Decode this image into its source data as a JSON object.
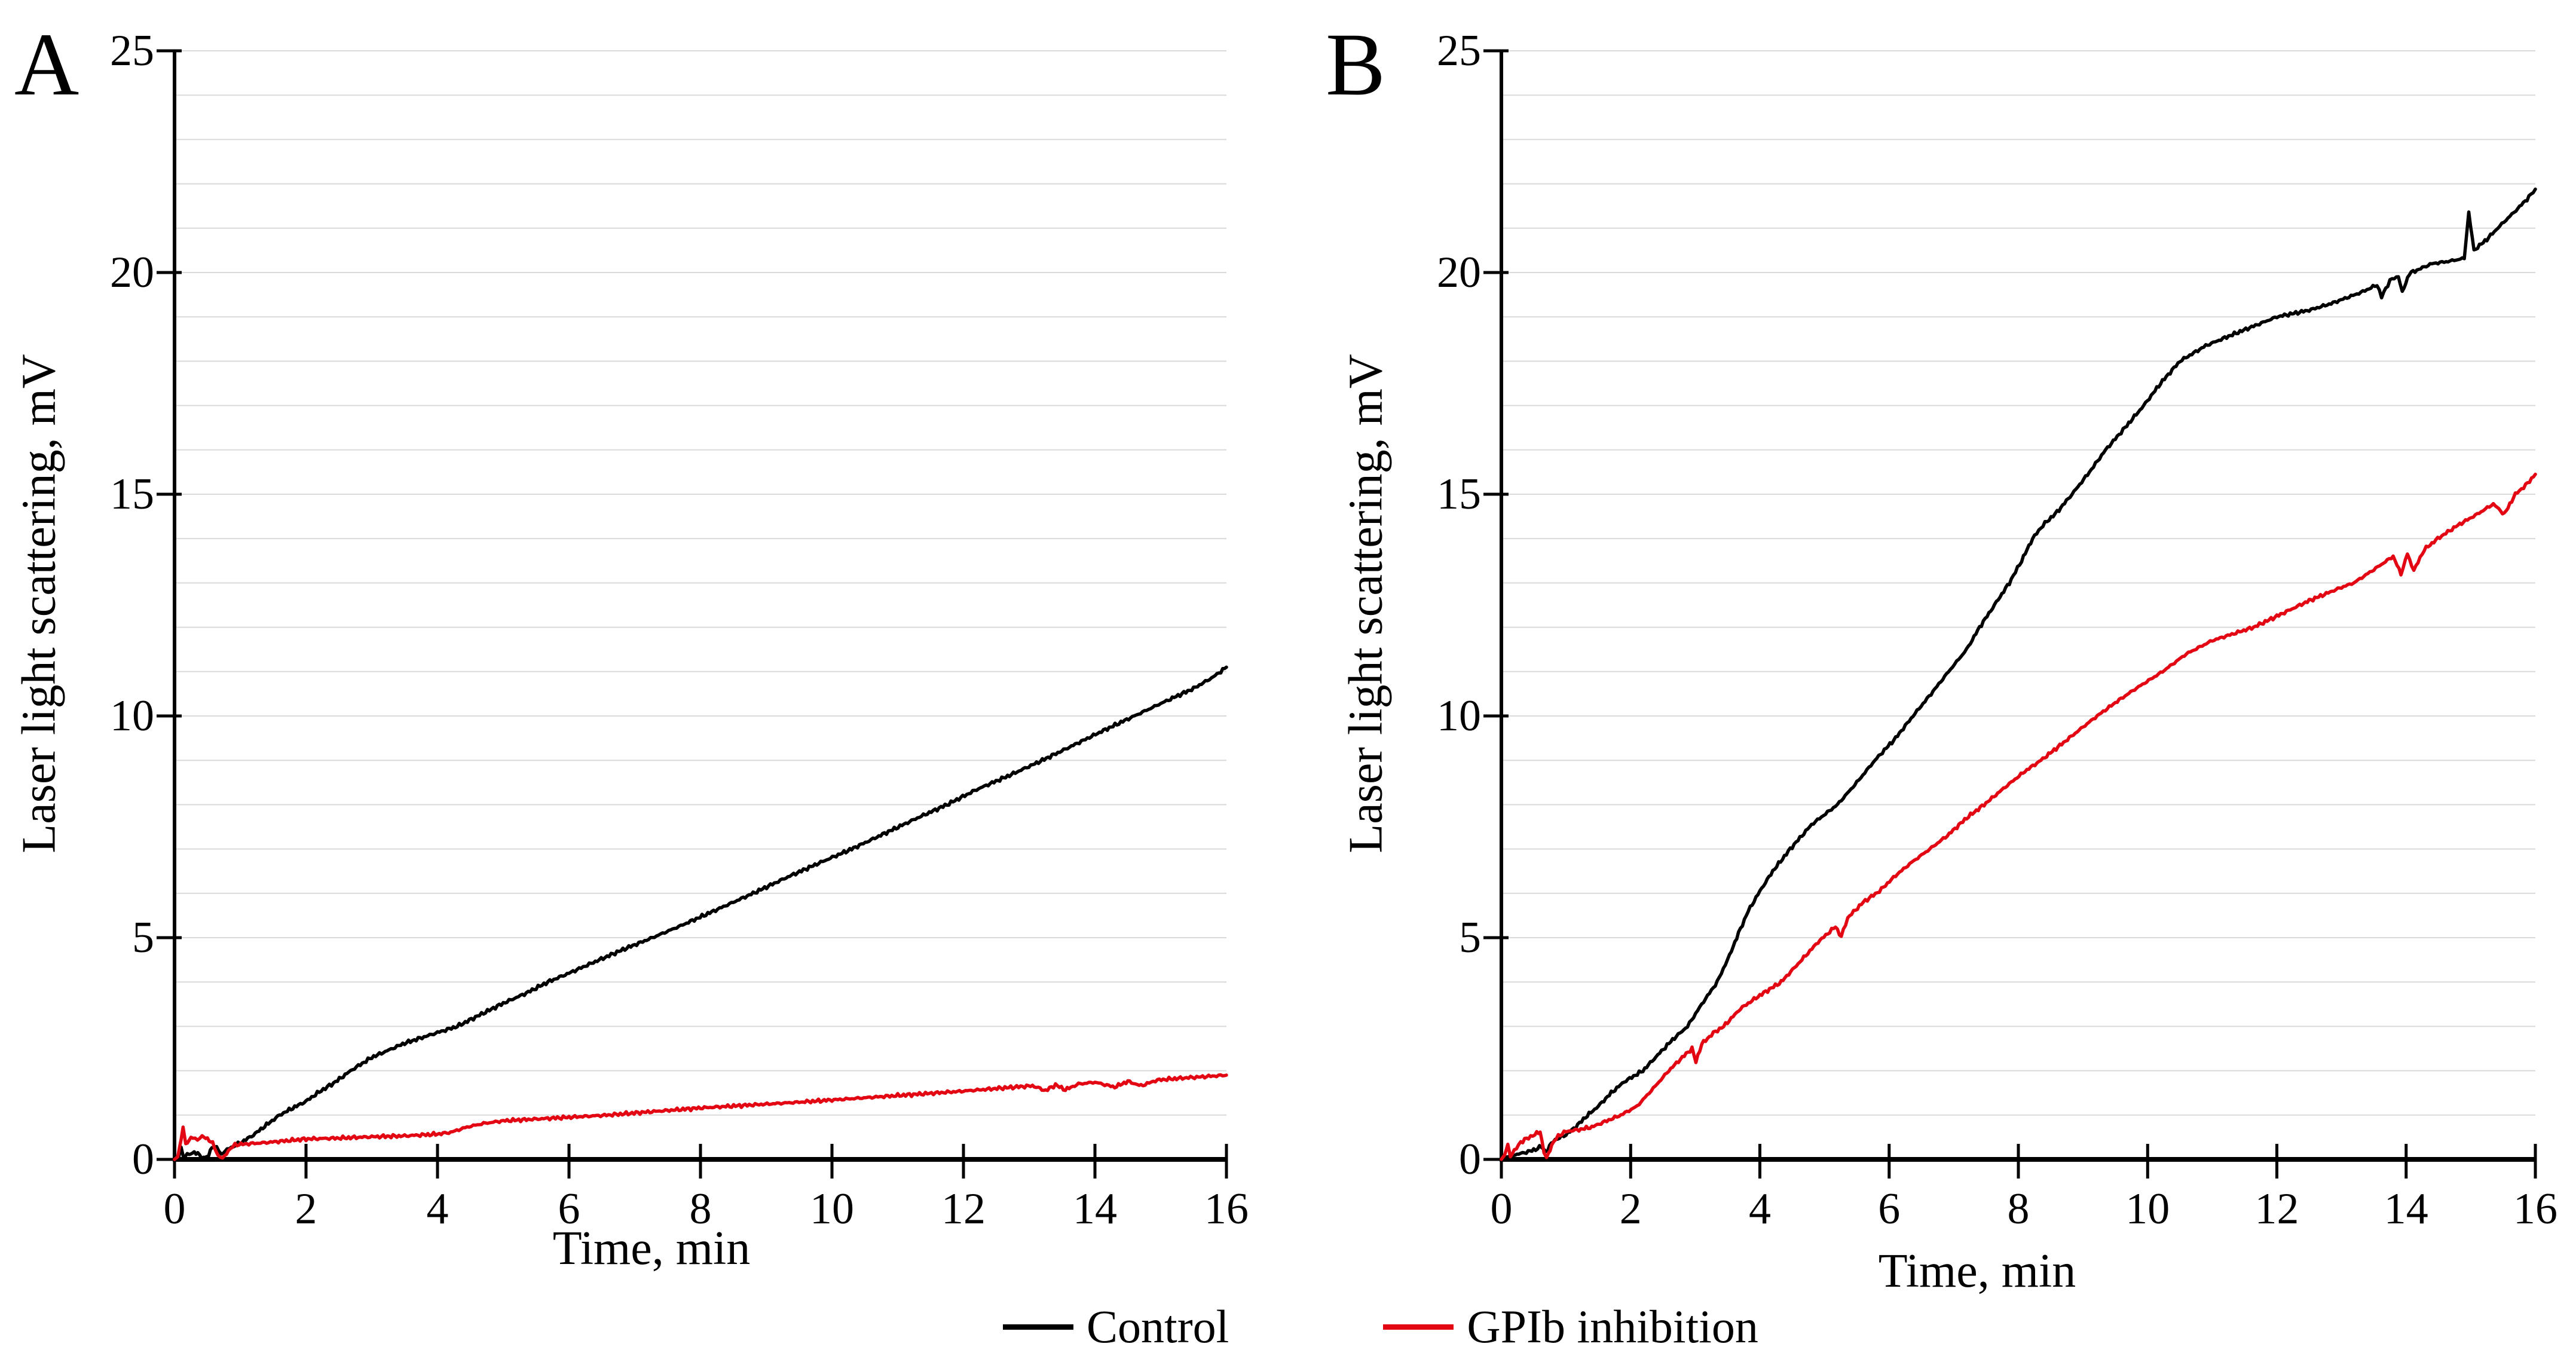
{
  "style": {
    "background": "#ffffff",
    "grid_color": "#d9d9d9",
    "axis_color": "#000000",
    "control_color": "#000000",
    "gpib_color": "#e30613"
  },
  "legend": {
    "items": [
      {
        "label": "Control",
        "color": "#000000"
      },
      {
        "label": "GPIb inhibition",
        "color": "#e30613"
      }
    ]
  },
  "chart_data": [
    {
      "type": "line",
      "panel_label": "A",
      "xlabel": "Time, min",
      "ylabel": "Laser light scattering, mV",
      "xlim": [
        0,
        16
      ],
      "ylim": [
        0,
        25
      ],
      "xticks": [
        0,
        2,
        4,
        6,
        8,
        10,
        12,
        14,
        16
      ],
      "yticks": [
        0,
        5,
        10,
        15,
        20,
        25
      ],
      "grid": "horizontal",
      "grid_step": 1,
      "legend_position": "bottom",
      "series": [
        {
          "name": "Control",
          "color": "#000000",
          "points": [
            [
              0,
              0
            ],
            [
              0.06,
              0.03
            ],
            [
              0.1,
              0.26
            ],
            [
              0.14,
              0.05
            ],
            [
              0.22,
              0.12
            ],
            [
              0.3,
              0.16
            ],
            [
              0.38,
              0.1
            ],
            [
              0.44,
              0.03
            ],
            [
              0.52,
              0.08
            ],
            [
              0.57,
              0.3
            ],
            [
              0.64,
              0.26
            ],
            [
              0.71,
              0.12
            ],
            [
              0.8,
              0.22
            ],
            [
              0.9,
              0.3
            ],
            [
              1,
              0.37
            ],
            [
              1.2,
              0.55
            ],
            [
              1.4,
              0.78
            ],
            [
              1.6,
              1
            ],
            [
              1.8,
              1.16
            ],
            [
              2,
              1.31
            ],
            [
              2.2,
              1.52
            ],
            [
              2.45,
              1.75
            ],
            [
              2.68,
              2
            ],
            [
              3,
              2.3
            ],
            [
              3.5,
              2.62
            ],
            [
              4,
              2.86
            ],
            [
              4.3,
              3
            ],
            [
              4.7,
              3.3
            ],
            [
              5,
              3.52
            ],
            [
              5.35,
              3.75
            ],
            [
              5.68,
              4
            ],
            [
              6,
              4.2
            ],
            [
              6.4,
              4.46
            ],
            [
              6.85,
              4.75
            ],
            [
              7.27,
              5
            ],
            [
              7.7,
              5.27
            ],
            [
              8.2,
              5.6
            ],
            [
              8.8,
              6
            ],
            [
              9.3,
              6.35
            ],
            [
              9.8,
              6.68
            ],
            [
              10.3,
              7
            ],
            [
              10.8,
              7.35
            ],
            [
              11.3,
              7.7
            ],
            [
              11.75,
              8
            ],
            [
              12.2,
              8.34
            ],
            [
              12.7,
              8.66
            ],
            [
              13.2,
              9
            ],
            [
              13.7,
              9.36
            ],
            [
              14.1,
              9.65
            ],
            [
              14.6,
              10
            ],
            [
              15,
              10.28
            ],
            [
              15.5,
              10.62
            ],
            [
              15.8,
              10.88
            ],
            [
              16,
              11.1
            ]
          ]
        },
        {
          "name": "GPIb inhibition",
          "color": "#e30613",
          "points": [
            [
              0,
              0
            ],
            [
              0.05,
              0.06
            ],
            [
              0.1,
              0.45
            ],
            [
              0.13,
              0.73
            ],
            [
              0.17,
              0.36
            ],
            [
              0.22,
              0.43
            ],
            [
              0.28,
              0.5
            ],
            [
              0.35,
              0.44
            ],
            [
              0.42,
              0.52
            ],
            [
              0.5,
              0.47
            ],
            [
              0.58,
              0.36
            ],
            [
              0.66,
              0.1
            ],
            [
              0.73,
              0.01
            ],
            [
              0.82,
              0.2
            ],
            [
              0.92,
              0.33
            ],
            [
              1.1,
              0.35
            ],
            [
              1.4,
              0.38
            ],
            [
              1.7,
              0.42
            ],
            [
              2,
              0.46
            ],
            [
              2.5,
              0.48
            ],
            [
              3,
              0.51
            ],
            [
              3.5,
              0.53
            ],
            [
              4,
              0.57
            ],
            [
              4.2,
              0.61
            ],
            [
              4.45,
              0.73
            ],
            [
              4.7,
              0.81
            ],
            [
              5,
              0.87
            ],
            [
              5.5,
              0.91
            ],
            [
              6,
              0.95
            ],
            [
              6.6,
              1
            ],
            [
              7.2,
              1.07
            ],
            [
              8,
              1.16
            ],
            [
              8.8,
              1.23
            ],
            [
              9.5,
              1.29
            ],
            [
              10,
              1.34
            ],
            [
              10.7,
              1.41
            ],
            [
              11.3,
              1.47
            ],
            [
              12,
              1.54
            ],
            [
              12.6,
              1.61
            ],
            [
              13.05,
              1.66
            ],
            [
              13.25,
              1.55
            ],
            [
              13.4,
              1.68
            ],
            [
              13.55,
              1.57
            ],
            [
              13.75,
              1.7
            ],
            [
              14,
              1.74
            ],
            [
              14.3,
              1.63
            ],
            [
              14.5,
              1.76
            ],
            [
              14.7,
              1.66
            ],
            [
              14.95,
              1.79
            ],
            [
              15.3,
              1.83
            ],
            [
              15.7,
              1.87
            ],
            [
              16,
              1.9
            ]
          ]
        }
      ]
    },
    {
      "type": "line",
      "panel_label": "B",
      "xlabel": "Time, min",
      "ylabel": "Laser light scattering, mV",
      "xlim": [
        0,
        16
      ],
      "ylim": [
        0,
        25
      ],
      "xticks": [
        0,
        2,
        4,
        6,
        8,
        10,
        12,
        14,
        16
      ],
      "yticks": [
        0,
        5,
        10,
        15,
        20,
        25
      ],
      "grid": "horizontal",
      "grid_step": 1,
      "legend_position": "bottom",
      "series": [
        {
          "name": "Control",
          "color": "#000000",
          "points": [
            [
              0,
              0
            ],
            [
              0.08,
              0.05
            ],
            [
              0.15,
              0.09
            ],
            [
              0.3,
              0.13
            ],
            [
              0.5,
              0.21
            ],
            [
              0.62,
              0.29
            ],
            [
              0.69,
              0.17
            ],
            [
              0.8,
              0.41
            ],
            [
              0.9,
              0.49
            ],
            [
              1,
              0.56
            ],
            [
              1.15,
              0.73
            ],
            [
              1.3,
              0.95
            ],
            [
              1.5,
              1.2
            ],
            [
              1.7,
              1.5
            ],
            [
              1.9,
              1.75
            ],
            [
              2.19,
              2
            ],
            [
              2.45,
              2.4
            ],
            [
              2.65,
              2.7
            ],
            [
              2.88,
              3
            ],
            [
              3.1,
              3.5
            ],
            [
              3.34,
              4
            ],
            [
              3.53,
              4.6
            ],
            [
              3.67,
              5.1
            ],
            [
              3.82,
              5.6
            ],
            [
              4,
              6.05
            ],
            [
              4.2,
              6.5
            ],
            [
              4.47,
              7
            ],
            [
              4.8,
              7.55
            ],
            [
              5.2,
              8
            ],
            [
              5.5,
              8.5
            ],
            [
              5.78,
              9
            ],
            [
              6.1,
              9.5
            ],
            [
              6.37,
              10
            ],
            [
              6.65,
              10.5
            ],
            [
              6.92,
              11
            ],
            [
              7.2,
              11.5
            ],
            [
              7.4,
              12
            ],
            [
              7.63,
              12.5
            ],
            [
              7.86,
              13
            ],
            [
              8.05,
              13.5
            ],
            [
              8.22,
              14
            ],
            [
              8.38,
              14.3
            ],
            [
              8.6,
              14.6
            ],
            [
              8.83,
              15
            ],
            [
              9.1,
              15.5
            ],
            [
              9.35,
              16
            ],
            [
              9.65,
              16.5
            ],
            [
              9.94,
              17
            ],
            [
              10.2,
              17.5
            ],
            [
              10.5,
              18
            ],
            [
              10.9,
              18.35
            ],
            [
              11.4,
              18.65
            ],
            [
              12,
              19
            ],
            [
              12.5,
              19.15
            ],
            [
              12.84,
              19.3
            ],
            [
              13.3,
              19.55
            ],
            [
              13.55,
              19.72
            ],
            [
              13.62,
              19.45
            ],
            [
              13.75,
              19.82
            ],
            [
              13.88,
              19.92
            ],
            [
              13.94,
              19.55
            ],
            [
              14.05,
              19.98
            ],
            [
              14.4,
              20.2
            ],
            [
              14.65,
              20.25
            ],
            [
              14.9,
              20.32
            ],
            [
              14.97,
              21.35
            ],
            [
              15.05,
              20.5
            ],
            [
              15.25,
              20.75
            ],
            [
              15.45,
              21.05
            ],
            [
              15.7,
              21.4
            ],
            [
              15.9,
              21.7
            ],
            [
              16,
              21.88
            ]
          ]
        },
        {
          "name": "GPIb inhibition",
          "color": "#e30613",
          "points": [
            [
              0,
              0
            ],
            [
              0.05,
              0.1
            ],
            [
              0.1,
              0.33
            ],
            [
              0.14,
              0.09
            ],
            [
              0.2,
              0.19
            ],
            [
              0.3,
              0.39
            ],
            [
              0.42,
              0.49
            ],
            [
              0.52,
              0.56
            ],
            [
              0.6,
              0.63
            ],
            [
              0.66,
              0.16
            ],
            [
              0.7,
              0.02
            ],
            [
              0.78,
              0.33
            ],
            [
              0.88,
              0.53
            ],
            [
              1,
              0.63
            ],
            [
              1.2,
              0.67
            ],
            [
              1.4,
              0.73
            ],
            [
              1.6,
              0.85
            ],
            [
              1.85,
              1
            ],
            [
              2.1,
              1.2
            ],
            [
              2.35,
              1.6
            ],
            [
              2.59,
              2
            ],
            [
              2.8,
              2.3
            ],
            [
              2.95,
              2.5
            ],
            [
              3.01,
              2.2
            ],
            [
              3.1,
              2.6
            ],
            [
              3.28,
              2.85
            ],
            [
              3.44,
              3
            ],
            [
              3.7,
              3.4
            ],
            [
              4,
              3.7
            ],
            [
              4.33,
              4
            ],
            [
              4.68,
              4.55
            ],
            [
              4.9,
              4.9
            ],
            [
              5.17,
              5.25
            ],
            [
              5.26,
              5.02
            ],
            [
              5.36,
              5.45
            ],
            [
              5.6,
              5.8
            ],
            [
              5.85,
              6.05
            ],
            [
              6.1,
              6.4
            ],
            [
              6.35,
              6.7
            ],
            [
              6.63,
              7
            ],
            [
              6.9,
              7.3
            ],
            [
              7.2,
              7.7
            ],
            [
              7.47,
              8
            ],
            [
              7.8,
              8.4
            ],
            [
              8.1,
              8.75
            ],
            [
              8.35,
              9
            ],
            [
              8.7,
              9.4
            ],
            [
              9,
              9.75
            ],
            [
              9.22,
              10
            ],
            [
              9.5,
              10.3
            ],
            [
              9.8,
              10.6
            ],
            [
              10.23,
              11
            ],
            [
              10.6,
              11.4
            ],
            [
              11,
              11.7
            ],
            [
              11.64,
              12
            ],
            [
              12,
              12.25
            ],
            [
              12.5,
              12.6
            ],
            [
              13,
              12.9
            ],
            [
              13.19,
              13
            ],
            [
              13.5,
              13.3
            ],
            [
              13.8,
              13.6
            ],
            [
              13.92,
              13.2
            ],
            [
              14.02,
              13.65
            ],
            [
              14.12,
              13.28
            ],
            [
              14.28,
              13.75
            ],
            [
              14.49,
              14
            ],
            [
              14.8,
              14.3
            ],
            [
              15.1,
              14.55
            ],
            [
              15.35,
              14.78
            ],
            [
              15.52,
              14.55
            ],
            [
              15.69,
              15
            ],
            [
              15.85,
              15.2
            ],
            [
              16,
              15.45
            ]
          ]
        }
      ]
    }
  ]
}
